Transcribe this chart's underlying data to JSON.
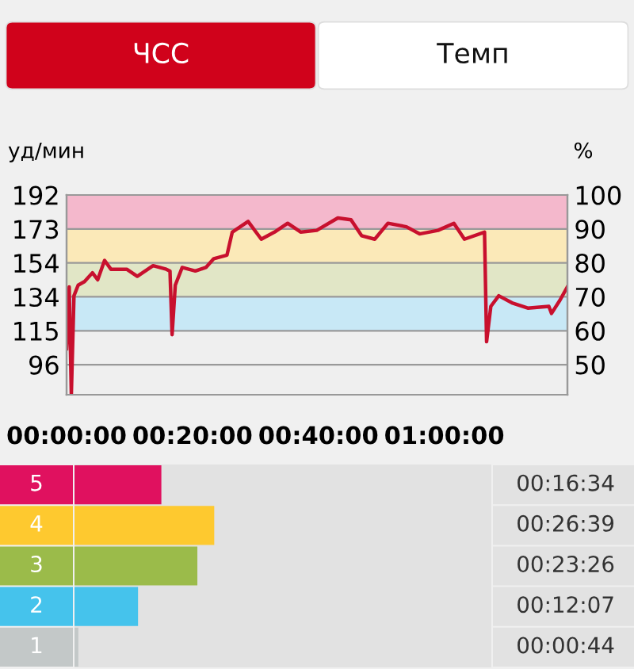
{
  "chart_data": [
    {
      "type": "other",
      "annotations": [
        "ЧСС",
        "Темп"
      ]
    },
    {
      "type": "line",
      "ylabel": "уд/мин",
      "y2label": "%",
      "grid": "y",
      "legend": false,
      "marker": "none",
      "line_style": "solid",
      "xlim": [
        0,
        1.326
      ],
      "xticks": [
        {
          "value": 0,
          "label": "00:00:00"
        },
        {
          "value": 0.3333,
          "label": "00:20:00"
        },
        {
          "value": 0.6667,
          "label": "00:40:00"
        },
        {
          "value": 1.0,
          "label": "01:00:00"
        }
      ],
      "ylim": [
        79,
        192
      ],
      "yticks": [
        {
          "value": 96,
          "label": "96"
        },
        {
          "value": 115.2,
          "label": "115"
        },
        {
          "value": 134.4,
          "label": "134"
        },
        {
          "value": 153.6,
          "label": "154"
        },
        {
          "value": 172.8,
          "label": "173"
        },
        {
          "value": 192,
          "label": "192"
        }
      ],
      "y2lim": [
        41.1,
        100
      ],
      "y2ticks": [
        50,
        60,
        70,
        80,
        90,
        100
      ],
      "bands": [
        {
          "axis": "y",
          "from": 172.8,
          "to": 192,
          "color": "#f4b8cc"
        },
        {
          "axis": "y",
          "from": 153.6,
          "to": 172.8,
          "color": "#fbe9b8"
        },
        {
          "axis": "y",
          "from": 134.4,
          "to": 153.6,
          "color": "#e1e6c6"
        },
        {
          "axis": "y",
          "from": 115.2,
          "to": 134.4,
          "color": "#c8e8f6"
        }
      ],
      "series": [
        {
          "color": "#c8102e",
          "x": [
            0,
            0.007,
            0.0126,
            0.0196,
            0.0307,
            0.0475,
            0.0685,
            0.0824,
            0.1006,
            0.1174,
            0.1593,
            0.1872,
            0.2291,
            0.264,
            0.2738,
            0.2794,
            0.2878,
            0.306,
            0.3409,
            0.3688,
            0.3898,
            0.4247,
            0.4387,
            0.4806,
            0.5155,
            0.5504,
            0.5854,
            0.6203,
            0.6622,
            0.7181,
            0.753,
            0.781,
            0.8159,
            0.8508,
            0.8997,
            0.9346,
            0.9835,
            1.0254,
            1.0534,
            1.1065,
            1.112,
            1.1232,
            1.1442,
            1.1791,
            1.221,
            1.2769,
            1.2839,
            1.3048,
            1.3258
          ],
          "values": [
            105,
            140,
            79,
            135,
            141,
            143,
            148,
            144,
            155,
            150,
            150,
            146,
            152,
            150,
            149,
            113,
            141,
            151,
            149,
            151,
            156,
            158,
            171,
            177,
            167,
            171,
            176,
            171,
            172,
            179,
            178,
            169,
            167,
            176,
            174,
            170,
            172,
            176,
            167,
            171,
            109,
            129,
            135,
            131,
            128,
            129,
            125,
            132,
            140
          ]
        }
      ]
    },
    {
      "type": "bar",
      "orientation": "horizontal",
      "categories": [
        "5",
        "4",
        "3",
        "2",
        "1"
      ],
      "colors": [
        "#e0115f",
        "#fec92f",
        "#9bbb4a",
        "#45c3ec",
        "#c3c8c8"
      ],
      "values": [
        0.27611,
        0.44417,
        0.39056,
        0.20194,
        0.01222
      ],
      "value_labels": [
        "00:16:34",
        "00:26:39",
        "00:23:26",
        "00:12:07",
        "00:00:44"
      ]
    }
  ]
}
